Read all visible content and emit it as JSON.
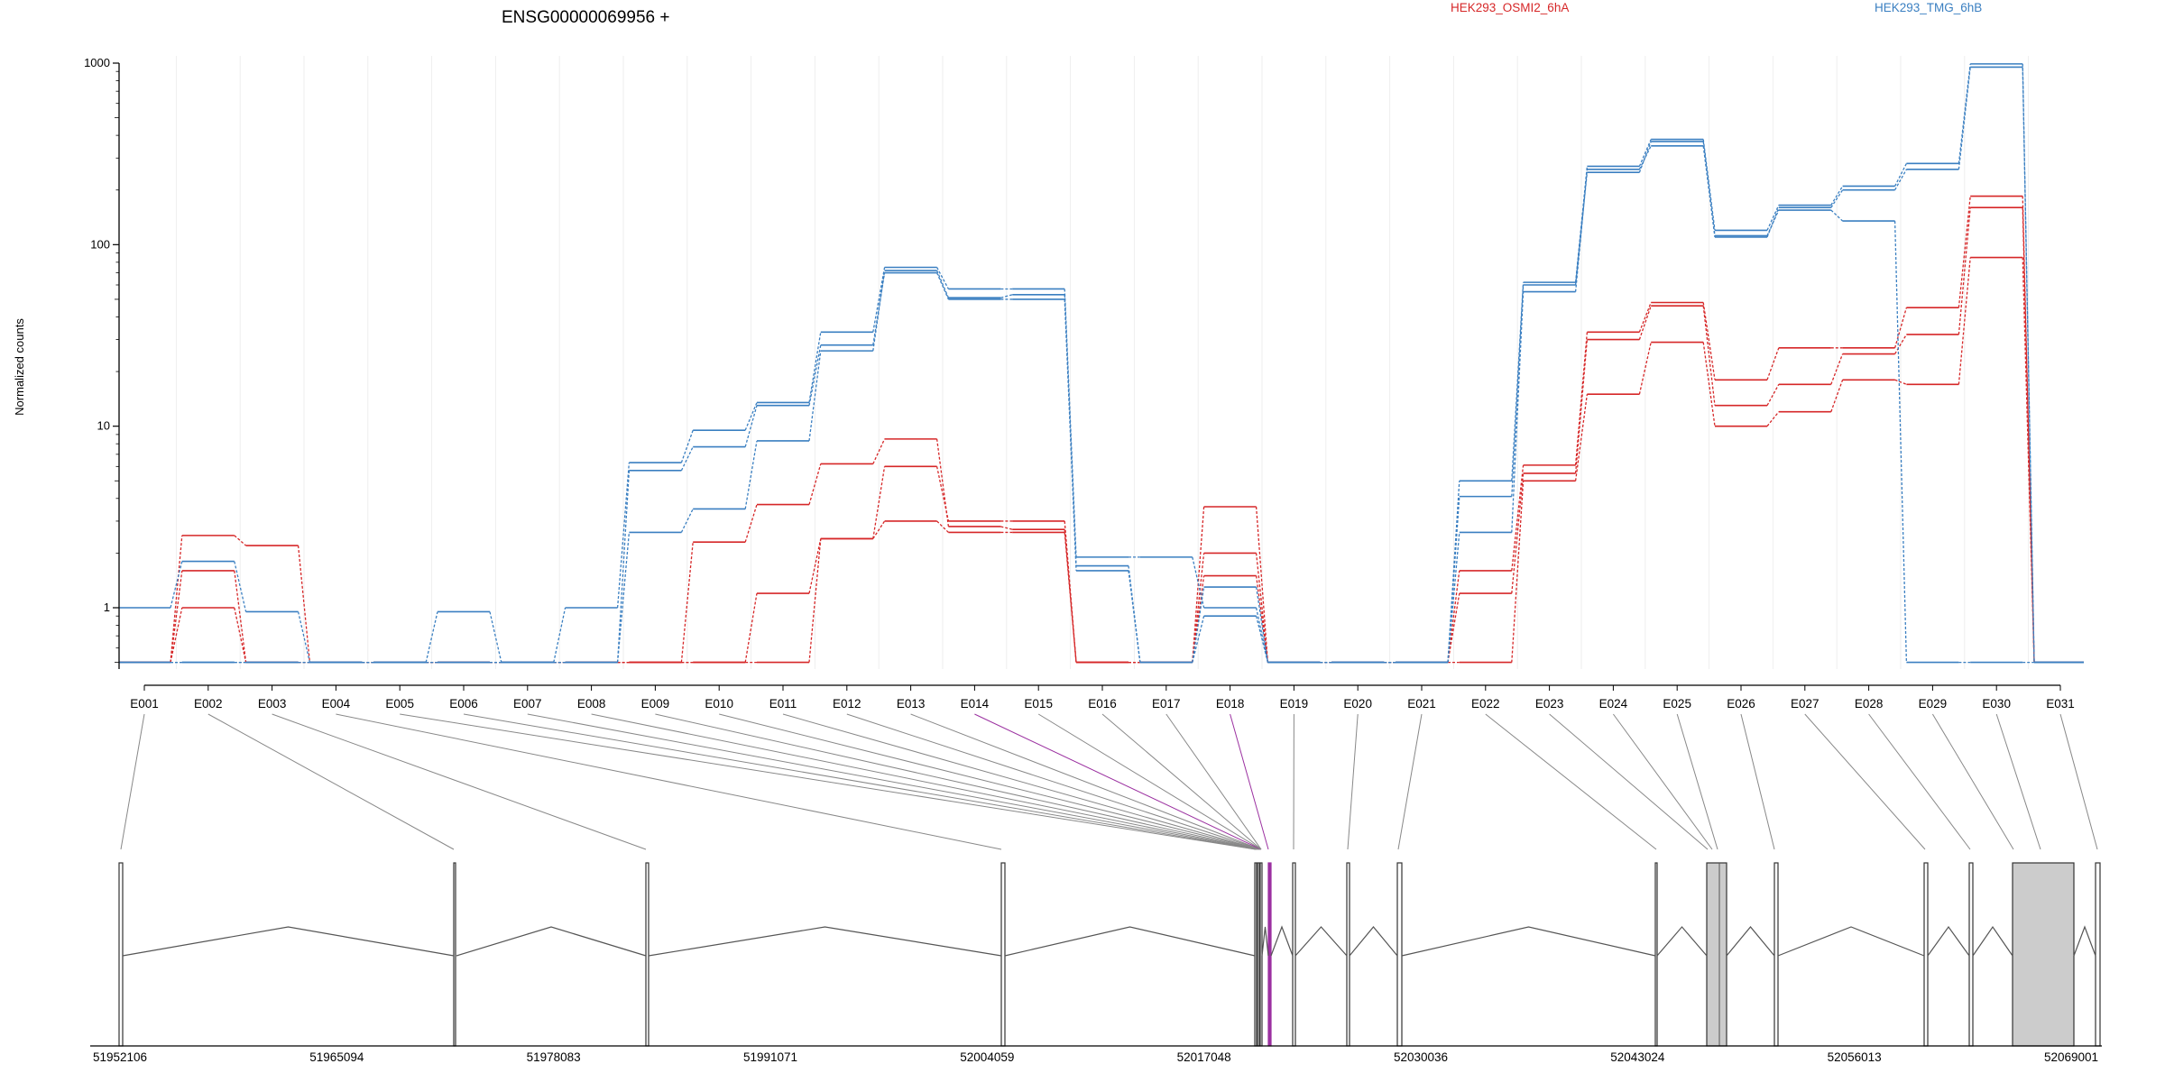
{
  "header": {
    "gene_title": "ENSG00000069956 +",
    "legend_a": "HEK293_OSMI2_6hA",
    "legend_b": "HEK293_TMG_6hB"
  },
  "colors": {
    "group_a": "#d62728",
    "group_b": "#3a7fc1",
    "connector": "#888888",
    "highlight": "#9b30a0",
    "exon_fill": "#cccccc"
  },
  "chart_data": {
    "type": "line",
    "title": "ENSG00000069956 +",
    "ylabel": "Normalized counts",
    "yscale": "log",
    "ylim": [
      0.5,
      1000
    ],
    "yticks": [
      1,
      10,
      100,
      1000
    ],
    "ytick_labels": [
      "1",
      "10",
      "100",
      "1000"
    ],
    "grid": "vertical",
    "legend": "top",
    "categories": [
      "E001",
      "E002",
      "E003",
      "E004",
      "E005",
      "E006",
      "E007",
      "E008",
      "E009",
      "E010",
      "E011",
      "E012",
      "E013",
      "E014",
      "E015",
      "E016",
      "E017",
      "E018",
      "E019",
      "E020",
      "E021",
      "E022",
      "E023",
      "E024",
      "E025",
      "E026",
      "E027",
      "E028",
      "E029",
      "E030",
      "E031"
    ],
    "series": [
      {
        "name": "HEK293_OSMI2_6hA",
        "group": "a",
        "values": [
          0.5,
          2.5,
          2.2,
          0.5,
          0.5,
          0.5,
          0.5,
          0.5,
          0.5,
          2.3,
          3.7,
          6.2,
          8.5,
          2.8,
          2.7,
          0.5,
          0.5,
          3.6,
          0.5,
          0.5,
          0.5,
          1.6,
          6.1,
          33,
          48,
          18,
          27,
          27,
          45,
          185,
          0.5
        ]
      },
      {
        "name": "HEK293_OSMI2_6hA",
        "group": "a",
        "values": [
          0.5,
          1.6,
          0.5,
          0.5,
          0.5,
          0.5,
          0.5,
          0.5,
          0.5,
          0.5,
          1.2,
          2.4,
          3.0,
          2.6,
          2.6,
          0.5,
          0.5,
          1.5,
          0.5,
          0.5,
          0.5,
          1.2,
          5.5,
          30,
          46,
          13,
          17,
          25,
          32,
          160,
          0.5
        ]
      },
      {
        "name": "HEK293_OSMI2_6hA",
        "group": "a",
        "values": [
          0.5,
          1.0,
          0.5,
          0.5,
          0.5,
          0.5,
          0.5,
          0.5,
          0.5,
          0.5,
          0.5,
          2.4,
          6.0,
          3.0,
          3.0,
          0.5,
          0.5,
          2.0,
          0.5,
          0.5,
          0.5,
          0.5,
          5.0,
          15,
          29,
          10,
          12,
          18,
          17,
          85,
          0.5
        ]
      },
      {
        "name": "HEK293_TMG_6hB",
        "group": "b",
        "values": [
          1.0,
          1.8,
          0.95,
          0.5,
          0.5,
          0.95,
          0.5,
          1.0,
          6.3,
          9.5,
          13.5,
          33,
          75,
          57,
          57,
          1.9,
          1.9,
          1.0,
          0.5,
          0.5,
          0.5,
          5.0,
          62,
          270,
          380,
          120,
          165,
          210,
          280,
          990,
          0.5
        ]
      },
      {
        "name": "HEK293_TMG_6hB",
        "group": "b",
        "values": [
          0.5,
          0.5,
          0.5,
          0.5,
          0.5,
          0.5,
          0.5,
          0.5,
          5.7,
          7.7,
          13,
          28,
          70,
          50,
          50,
          1.6,
          0.5,
          0.9,
          0.5,
          0.5,
          0.5,
          2.6,
          55,
          260,
          350,
          110,
          160,
          200,
          260,
          950,
          0.5
        ]
      },
      {
        "name": "HEK293_TMG_6hB",
        "group": "b",
        "values": [
          0.5,
          0.5,
          0.5,
          0.5,
          0.5,
          0.5,
          0.5,
          0.5,
          2.6,
          3.5,
          8.3,
          26,
          72,
          51,
          53,
          1.7,
          0.5,
          1.3,
          0.5,
          0.5,
          0.5,
          4.1,
          60,
          250,
          370,
          112,
          155,
          135,
          0.5,
          0.5,
          0.5
        ]
      }
    ],
    "genomic_axis": {
      "tick_labels": [
        "51952106",
        "51965094",
        "51978083",
        "51991071",
        "52004059",
        "52017048",
        "52030036",
        "52043024",
        "52056013",
        "52069001"
      ]
    },
    "highlighted_exons": [
      "E014",
      "E018"
    ]
  }
}
